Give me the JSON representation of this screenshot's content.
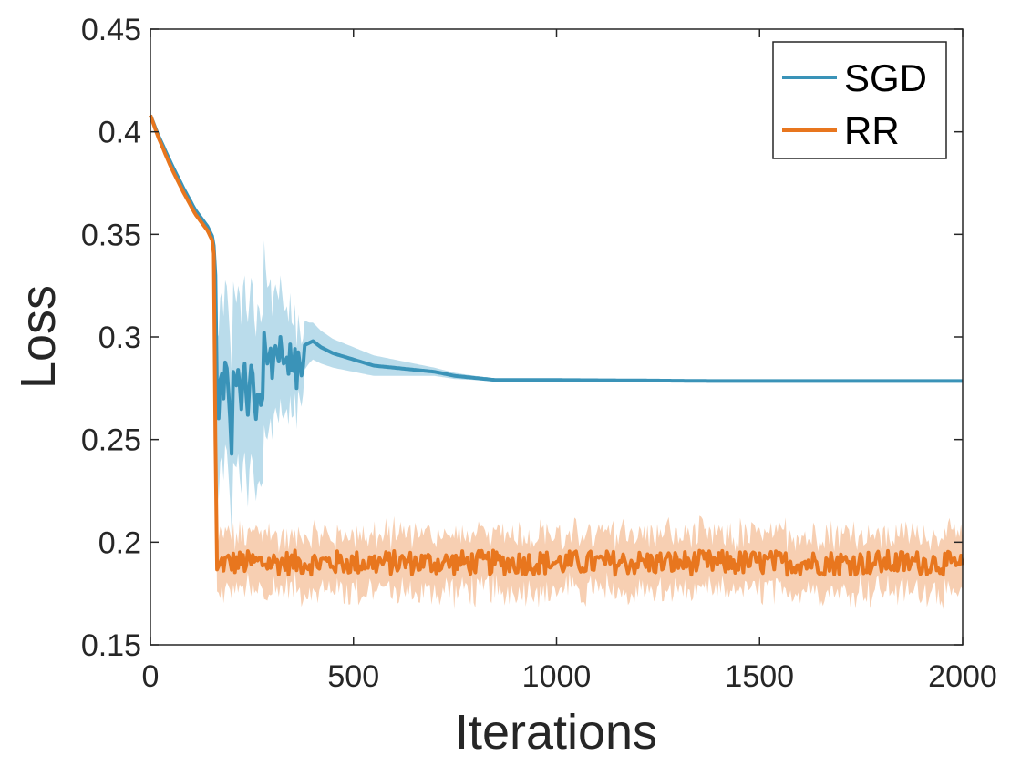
{
  "chart_data": {
    "type": "line",
    "title": "",
    "xlabel": "Iterations",
    "ylabel": "Loss",
    "xlim": [
      0,
      2000
    ],
    "ylim": [
      0.15,
      0.45
    ],
    "xticks": [
      0,
      500,
      1000,
      1500,
      2000
    ],
    "xtick_labels": [
      "0",
      "500",
      "1000",
      "1500",
      "2000"
    ],
    "yticks": [
      0.15,
      0.2,
      0.25,
      0.3,
      0.35,
      0.4,
      0.45
    ],
    "ytick_labels": [
      "0.15",
      "0.2",
      "0.25",
      "0.3",
      "0.35",
      "0.4",
      "0.45"
    ],
    "grid": false,
    "legend_position": "top-right",
    "series": [
      {
        "name": "SGD",
        "color": "#3a93b8",
        "band_color": "#aed6e8",
        "x": [
          0,
          20,
          50,
          80,
          110,
          140,
          155,
          160,
          163,
          167,
          170,
          175,
          180,
          185,
          190,
          195,
          200,
          205,
          210,
          215,
          220,
          225,
          230,
          235,
          240,
          245,
          250,
          255,
          260,
          265,
          270,
          275,
          280,
          285,
          290,
          295,
          300,
          305,
          310,
          315,
          320,
          325,
          330,
          335,
          340,
          345,
          350,
          355,
          360,
          365,
          370,
          375,
          380,
          390,
          400,
          420,
          450,
          500,
          550,
          600,
          650,
          700,
          750,
          800,
          850,
          900,
          1000,
          1200,
          1400,
          1600,
          1800,
          2000
        ],
        "values": [
          0.408,
          0.398,
          0.385,
          0.373,
          0.362,
          0.354,
          0.348,
          0.33,
          0.275,
          0.253,
          0.275,
          0.285,
          0.27,
          0.292,
          0.28,
          0.265,
          0.243,
          0.293,
          0.27,
          0.286,
          0.276,
          0.262,
          0.295,
          0.275,
          0.262,
          0.28,
          0.29,
          0.27,
          0.26,
          0.275,
          0.27,
          0.262,
          0.302,
          0.29,
          0.285,
          0.298,
          0.28,
          0.295,
          0.296,
          0.285,
          0.3,
          0.29,
          0.285,
          0.292,
          0.282,
          0.3,
          0.273,
          0.299,
          0.275,
          0.297,
          0.28,
          0.283,
          0.296,
          0.297,
          0.298,
          0.295,
          0.292,
          0.289,
          0.286,
          0.285,
          0.284,
          0.283,
          0.281,
          0.28,
          0.279,
          0.279,
          0.279,
          0.2788,
          0.2785,
          0.2785,
          0.2785,
          0.2785
        ],
        "band_halfwidth": [
          0.0005,
          0.0005,
          0.0005,
          0.0005,
          0.0005,
          0.0005,
          0.001,
          0.006,
          0.03,
          0.04,
          0.04,
          0.04,
          0.04,
          0.04,
          0.04,
          0.04,
          0.04,
          0.045,
          0.04,
          0.04,
          0.045,
          0.04,
          0.045,
          0.04,
          0.045,
          0.04,
          0.045,
          0.04,
          0.04,
          0.045,
          0.04,
          0.04,
          0.045,
          0.04,
          0.035,
          0.035,
          0.03,
          0.03,
          0.03,
          0.03,
          0.03,
          0.03,
          0.025,
          0.025,
          0.025,
          0.025,
          0.022,
          0.022,
          0.02,
          0.018,
          0.016,
          0.014,
          0.012,
          0.01,
          0.009,
          0.008,
          0.007,
          0.006,
          0.005,
          0.004,
          0.003,
          0.002,
          0.0015,
          0.001,
          0.0008,
          0.0006,
          0.0005,
          0.0005,
          0.0005,
          0.0005,
          0.0005,
          0.0005
        ]
      },
      {
        "name": "RR",
        "color": "#e8761e",
        "band_color": "#f6c7a5",
        "x": [
          0,
          20,
          50,
          80,
          110,
          140,
          155,
          158,
          160,
          162,
          165,
          175,
          200,
          250,
          300,
          350,
          400,
          450,
          500,
          600,
          700,
          800,
          900,
          1000,
          1200,
          1400,
          1600,
          1800,
          1950,
          2000
        ],
        "values": [
          0.408,
          0.397,
          0.383,
          0.371,
          0.36,
          0.352,
          0.346,
          0.33,
          0.25,
          0.19,
          0.185,
          0.19,
          0.19,
          0.19,
          0.19,
          0.19,
          0.19,
          0.19,
          0.19,
          0.19,
          0.19,
          0.19,
          0.19,
          0.19,
          0.19,
          0.19,
          0.19,
          0.19,
          0.19,
          0.188
        ],
        "band_halfwidth": [
          0.0005,
          0.0005,
          0.0005,
          0.0005,
          0.0005,
          0.0005,
          0.001,
          0.005,
          0.02,
          0.012,
          0.01,
          0.01,
          0.01,
          0.01,
          0.01,
          0.01,
          0.01,
          0.01,
          0.01,
          0.01,
          0.01,
          0.01,
          0.01,
          0.01,
          0.01,
          0.01,
          0.01,
          0.01,
          0.01,
          0.01
        ],
        "noise_amplitude": 0.006
      }
    ]
  }
}
